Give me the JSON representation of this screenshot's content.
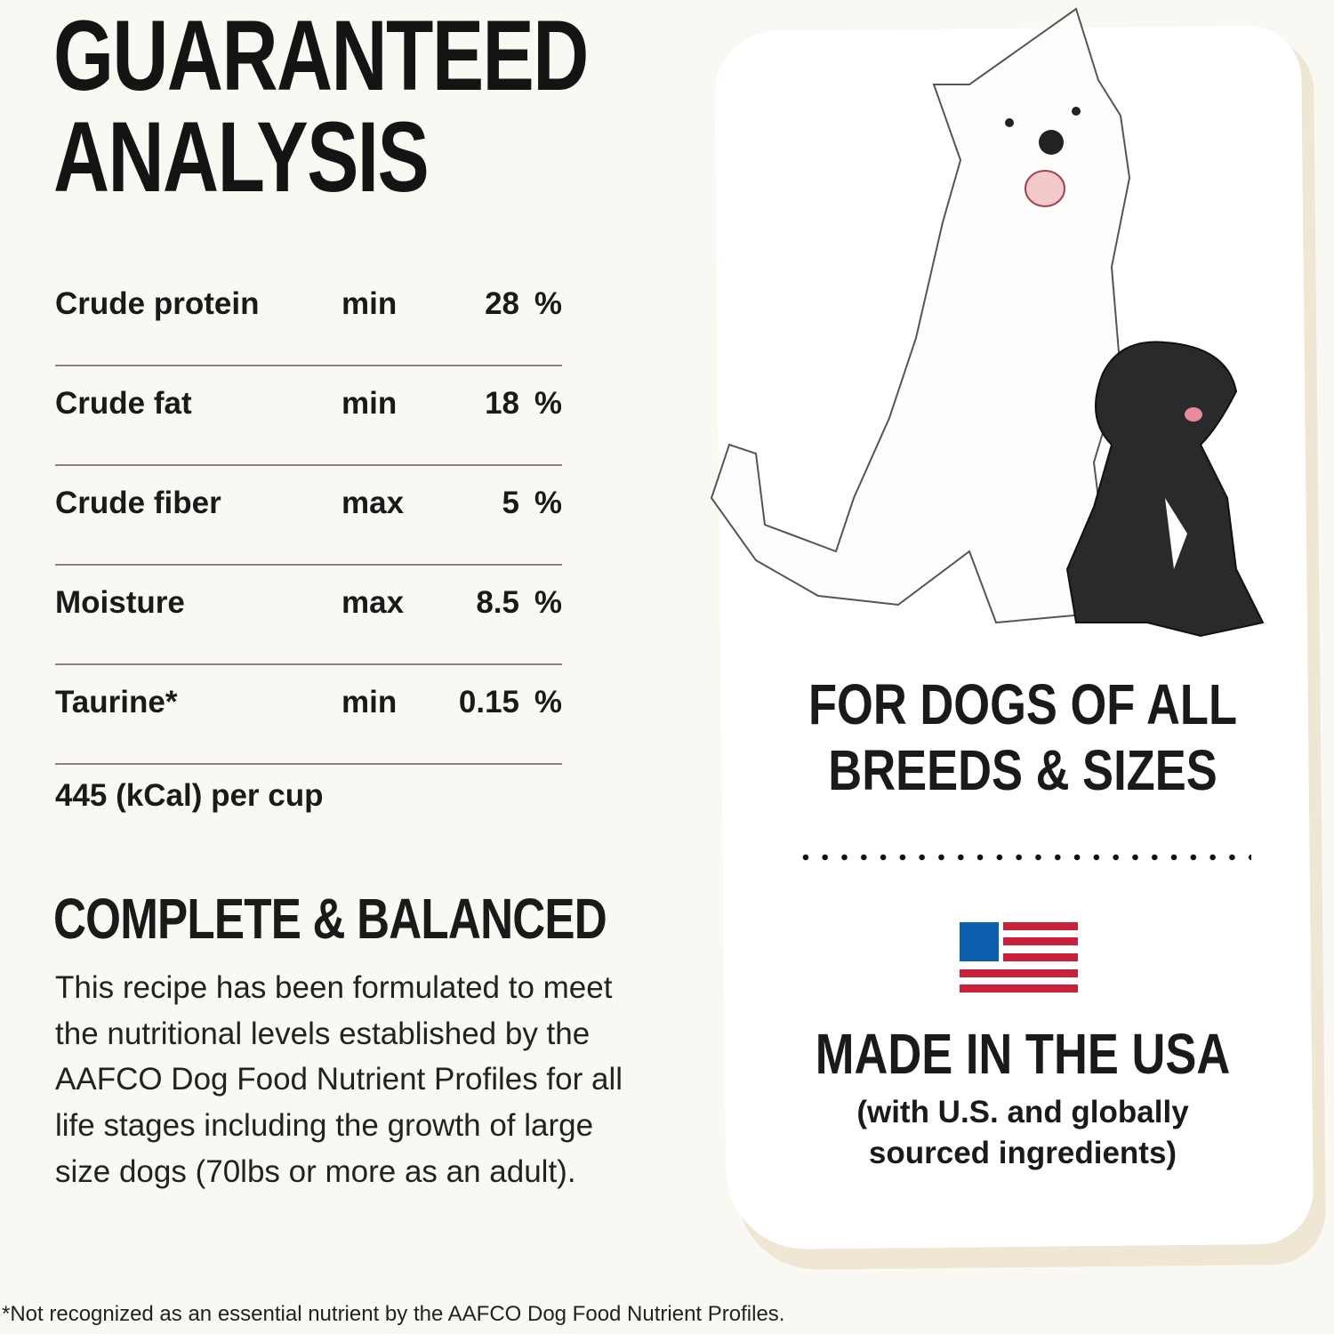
{
  "title_lines": [
    "GUARANTEED",
    "ANALYSIS"
  ],
  "analysis": [
    {
      "nutrient": "Crude protein",
      "kind": "min",
      "value": "28",
      "unit": "%"
    },
    {
      "nutrient": "Crude fat",
      "kind": "min",
      "value": "18",
      "unit": "%"
    },
    {
      "nutrient": "Crude fiber",
      "kind": "max",
      "value": "5",
      "unit": "%"
    },
    {
      "nutrient": "Moisture",
      "kind": "max",
      "value": "8.5",
      "unit": "%"
    },
    {
      "nutrient": "Taurine*",
      "kind": "min",
      "value": "0.15",
      "unit": "%"
    }
  ],
  "calories": "445 (kCal) per cup",
  "complete": {
    "heading": "COMPLETE & BALANCED",
    "body": "This recipe has been formulated to meet the nutritional levels established by the AAFCO Dog Food Nutrient Profiles for all life stages including the growth of large size dogs (70lbs or more as an adult)."
  },
  "card": {
    "breeds_lines": [
      "FOR DOGS OF ALL",
      "BREEDS & SIZES"
    ],
    "made_in": "MADE IN THE USA",
    "sourced_lines": [
      "(with U.S. and globally",
      "sourced ingredients)"
    ],
    "flag_colors": {
      "blue": "#0b5fad",
      "red": "#c8203a"
    }
  },
  "footnote": "*Not recognized as an essential nutrient by the AAFCO Dog Food Nutrient Profiles."
}
